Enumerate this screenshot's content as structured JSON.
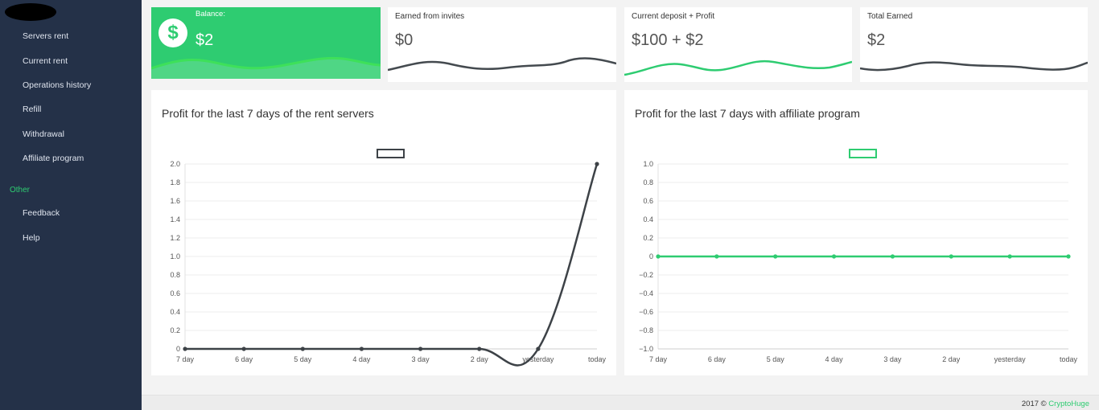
{
  "sidebar": {
    "items": [
      {
        "label": "Servers rent",
        "name": "sidebar-item-servers-rent"
      },
      {
        "label": "Current rent",
        "name": "sidebar-item-current-rent"
      },
      {
        "label": "Operations history",
        "name": "sidebar-item-operations-history"
      },
      {
        "label": "Refill",
        "name": "sidebar-item-refill"
      },
      {
        "label": "Withdrawal",
        "name": "sidebar-item-withdrawal"
      },
      {
        "label": "Affiliate program",
        "name": "sidebar-item-affiliate-program"
      }
    ],
    "section_label": "Other",
    "other_items": [
      {
        "label": "Feedback",
        "name": "sidebar-item-feedback"
      },
      {
        "label": "Help",
        "name": "sidebar-item-help"
      }
    ]
  },
  "cards": {
    "balance": {
      "label": "Balance:",
      "value": "$2",
      "icon": "dollar-icon"
    },
    "invites": {
      "label": "Earned from invites",
      "value": "$0"
    },
    "deposit": {
      "label": "Current deposit + Profit",
      "value": "$100 + $2"
    },
    "total": {
      "label": "Total Earned",
      "value": "$2"
    }
  },
  "colors": {
    "sidebar": "#243148",
    "accent": "#2ecc71",
    "dark_line": "#3d4247",
    "balance_wave": "#3ee05a"
  },
  "charts": {
    "rent": {
      "title": "Profit for the last 7 days of the rent servers"
    },
    "affiliate": {
      "title": "Profit for the last 7 days with affiliate program"
    }
  },
  "chart_data": [
    {
      "type": "line",
      "title": "Profit for the last 7 days of the rent servers",
      "categories": [
        "7 day",
        "6 day",
        "5 day",
        "4 day",
        "3 day",
        "2 day",
        "yesterday",
        "today"
      ],
      "series": [
        {
          "values": [
            0,
            0,
            0,
            0,
            0,
            0,
            0,
            2
          ],
          "color": "#3d4247"
        }
      ],
      "yticks": [
        "0",
        "0.2",
        "0.4",
        "0.6",
        "0.8",
        "1.0",
        "1.2",
        "1.4",
        "1.6",
        "1.8",
        "2.0"
      ],
      "ylim": [
        0,
        2
      ],
      "legend": "top-center",
      "grid": true
    },
    {
      "type": "line",
      "title": "Profit for the last 7 days with affiliate program",
      "categories": [
        "7 day",
        "6 day",
        "5 day",
        "4 day",
        "3 day",
        "2 day",
        "yesterday",
        "today"
      ],
      "series": [
        {
          "values": [
            0,
            0,
            0,
            0,
            0,
            0,
            0,
            0
          ],
          "color": "#2ecc71"
        }
      ],
      "yticks": [
        "−1.0",
        "−0.8",
        "−0.6",
        "−0.4",
        "−0.2",
        "0",
        "0.2",
        "0.4",
        "0.6",
        "0.8",
        "1.0"
      ],
      "ylim": [
        -1,
        1
      ],
      "legend": "top-center",
      "grid": true
    }
  ],
  "footer": {
    "text": "2017 © ",
    "brand": "CryptoHuge"
  }
}
